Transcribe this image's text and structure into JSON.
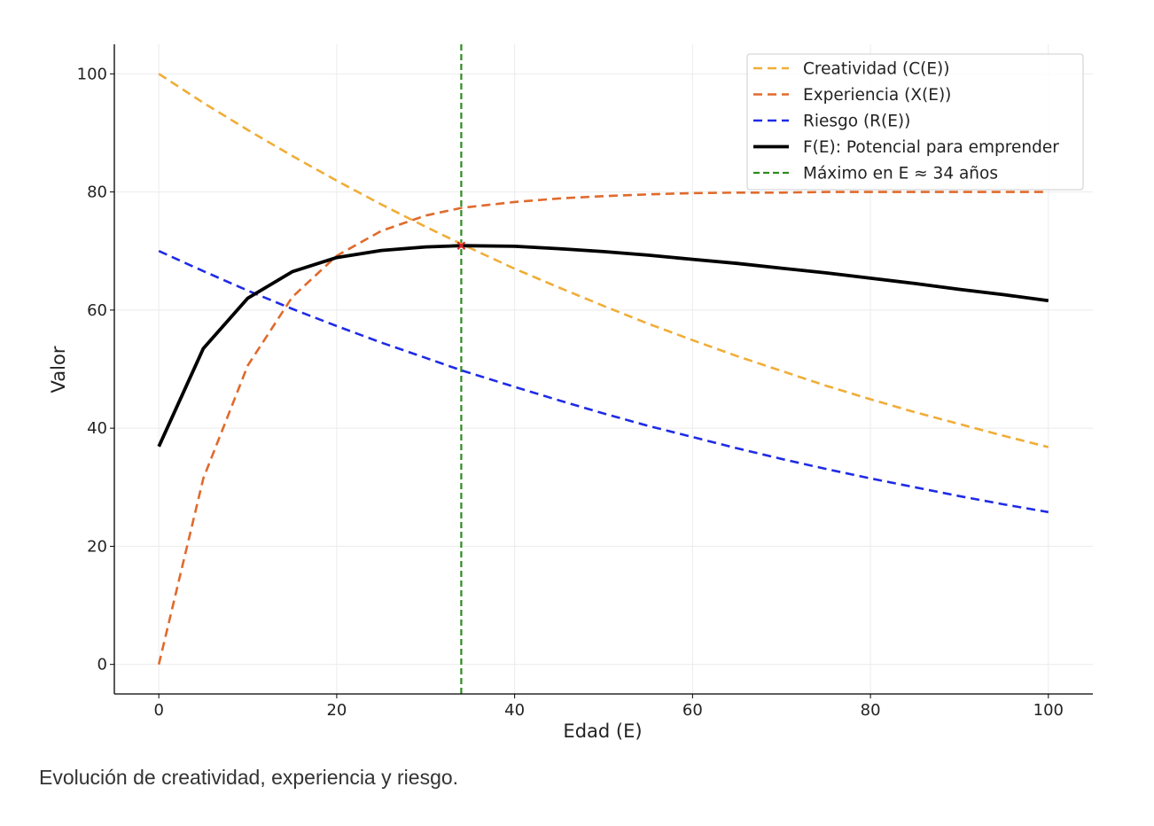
{
  "caption": "Evolución de creatividad, experiencia y riesgo.",
  "chart_data": {
    "type": "line",
    "title": "",
    "xlabel": "Edad (E)",
    "ylabel": "Valor",
    "xlim": [
      -5,
      105
    ],
    "ylim": [
      -5,
      105
    ],
    "xticks": [
      0,
      20,
      40,
      60,
      80,
      100
    ],
    "yticks": [
      0,
      20,
      40,
      60,
      80,
      100
    ],
    "grid": true,
    "legend_position": "top-right",
    "x": [
      0,
      5,
      10,
      15,
      20,
      25,
      30,
      34,
      40,
      45,
      50,
      55,
      60,
      65,
      70,
      75,
      80,
      85,
      90,
      95,
      100
    ],
    "series": [
      {
        "name": "Creatividad (C(E))",
        "style": "dashed",
        "color": "#F0AD37",
        "values": [
          100,
          95.1,
          90.5,
          86.1,
          81.9,
          77.9,
          74.1,
          71.2,
          67.0,
          63.8,
          60.7,
          57.7,
          54.9,
          52.2,
          49.7,
          47.2,
          44.9,
          42.7,
          40.7,
          38.7,
          36.8
        ]
      },
      {
        "name": "Experiencia (X(E))",
        "style": "dashed",
        "color": "#E06A2C",
        "values": [
          0,
          31.5,
          50.6,
          62.2,
          69.2,
          73.4,
          76.0,
          77.3,
          78.3,
          78.9,
          79.3,
          79.6,
          79.8,
          79.9,
          79.9,
          80.0,
          80.0,
          80.0,
          80.0,
          80.0,
          80.0
        ]
      },
      {
        "name": "Riesgo (R(E))",
        "style": "dashed",
        "color": "#1F2BE6",
        "values": [
          70,
          66.6,
          63.3,
          60.2,
          57.3,
          54.5,
          51.9,
          49.8,
          47.0,
          44.7,
          42.5,
          40.4,
          38.5,
          36.6,
          34.8,
          33.1,
          31.5,
          30.0,
          28.5,
          27.1,
          25.8
        ]
      },
      {
        "name": "F(E): Potencial para emprender",
        "style": "solid",
        "color": "#000000",
        "values": [
          36.9,
          53.5,
          62.0,
          66.5,
          68.9,
          70.1,
          70.7,
          70.9,
          70.8,
          70.4,
          69.9,
          69.3,
          68.6,
          67.9,
          67.1,
          66.3,
          65.4,
          64.5,
          63.5,
          62.6,
          61.6
        ]
      }
    ],
    "reference_line": {
      "name": "Máximo en E ≈ 34 años",
      "x": 34,
      "style": "dashed",
      "color": "#2E8B1F"
    },
    "marker": {
      "x": 34,
      "y": 70.9,
      "color": "#D62728"
    }
  }
}
